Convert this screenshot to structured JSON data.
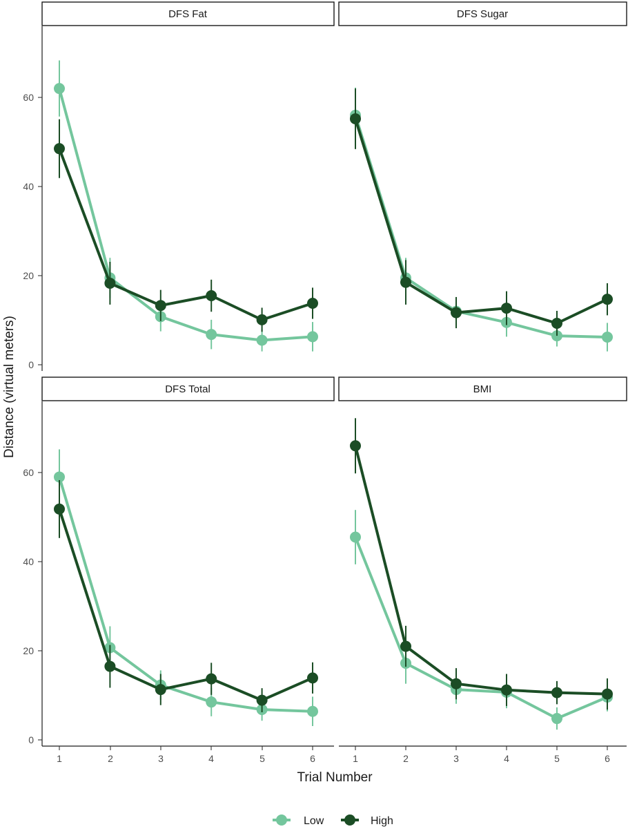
{
  "chart_data": {
    "type": "line",
    "xlabel": "Trial Number",
    "ylabel": "Distance (virtual meters)",
    "x": [
      1,
      2,
      3,
      4,
      5,
      6
    ],
    "x_tick_labels": [
      "1",
      "2",
      "3",
      "4",
      "5",
      "6"
    ],
    "ylim": [
      -1,
      74
    ],
    "y_ticks": [
      0,
      20,
      40,
      60
    ],
    "y_tick_labels": [
      "0",
      "20",
      "40",
      "60"
    ],
    "grid": false,
    "legend": {
      "placement": "bottom",
      "entries": [
        {
          "name": "Low",
          "color": "#74c69d"
        },
        {
          "name": "High",
          "color": "#1b4d25"
        }
      ]
    },
    "panels": [
      {
        "title": "DFS Fat",
        "series": [
          {
            "name": "Low",
            "values": [
              62,
              19.5,
              10.8,
              6.8,
              5.5,
              6.3
            ],
            "err": [
              6.3,
              4.5,
              3.3,
              3.3,
              2.5,
              3.3
            ]
          },
          {
            "name": "High",
            "values": [
              48.5,
              18.3,
              13.3,
              15.5,
              10.1,
              13.8
            ],
            "err": [
              6.6,
              4.8,
              3.5,
              3.6,
              2.7,
              3.5
            ]
          }
        ]
      },
      {
        "title": "DFS Sugar",
        "series": [
          {
            "name": "Low",
            "values": [
              56,
              19.5,
              12,
              9.5,
              6.5,
              6.2
            ],
            "err": [
              6.2,
              4.5,
              3.2,
              3.2,
              2.4,
              3.2
            ]
          },
          {
            "name": "High",
            "values": [
              55.2,
              18.5,
              11.7,
              12.7,
              9.3,
              14.7
            ],
            "err": [
              6.8,
              5,
              3.5,
              3.8,
              2.8,
              3.6
            ]
          }
        ]
      },
      {
        "title": "DFS Total",
        "series": [
          {
            "name": "Low",
            "values": [
              59,
              20.7,
              12.3,
              8.5,
              6.8,
              6.4
            ],
            "err": [
              6.2,
              4.8,
              3.3,
              3.2,
              2.5,
              3.3
            ]
          },
          {
            "name": "High",
            "values": [
              51.8,
              16.5,
              11.3,
              13.7,
              8.9,
              13.9
            ],
            "err": [
              6.5,
              4.8,
              3.5,
              3.6,
              2.7,
              3.5
            ]
          }
        ]
      },
      {
        "title": "BMI",
        "series": [
          {
            "name": "Low",
            "values": [
              45.5,
              17.2,
              11.3,
              10.7,
              4.8,
              9.6
            ],
            "err": [
              6.1,
              4.6,
              3.2,
              3.6,
              2.5,
              3.2
            ]
          },
          {
            "name": "High",
            "values": [
              66,
              21,
              12.6,
              11.2,
              10.6,
              10.3
            ],
            "err": [
              6.2,
              4.6,
              3.5,
              3.6,
              2.6,
              3.5
            ]
          }
        ]
      }
    ]
  }
}
